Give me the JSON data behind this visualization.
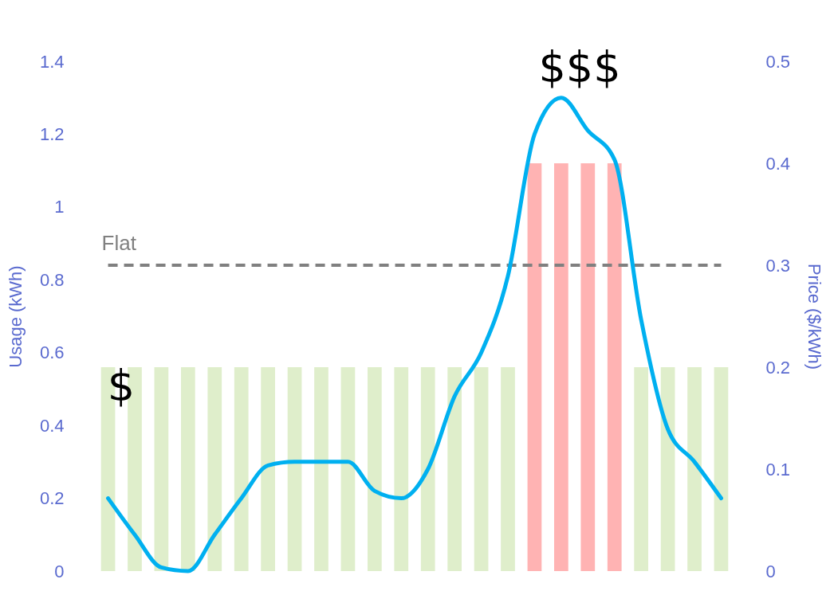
{
  "chart_data": {
    "type": "bar",
    "categories": [
      null,
      null,
      null,
      null,
      null,
      null,
      null,
      null,
      null,
      null,
      null,
      null,
      null,
      null,
      null,
      null,
      null,
      null,
      null,
      null,
      null,
      null,
      null,
      null
    ],
    "ylabel": "Usage (kWh)",
    "y2label": "Price ($/kWh)",
    "ylim": [
      0,
      1.4
    ],
    "yticks": [
      0,
      0.2,
      0.4,
      0.6,
      0.8,
      1,
      1.2,
      1.4
    ],
    "y2lim": [
      0,
      0.5
    ],
    "y2ticks": [
      0,
      0.1,
      0.2,
      0.3,
      0.4,
      0.5
    ],
    "series": [
      {
        "axis": "y2",
        "colors": [
          "#dfeecb",
          "#dfeecb",
          "#dfeecb",
          "#dfeecb",
          "#dfeecb",
          "#dfeecb",
          "#dfeecb",
          "#dfeecb",
          "#dfeecb",
          "#dfeecb",
          "#dfeecb",
          "#dfeecb",
          "#dfeecb",
          "#dfeecb",
          "#dfeecb",
          "#dfeecb",
          "#ffb3b3",
          "#ffb3b3",
          "#ffb3b3",
          "#ffb3b3",
          "#dfeecb",
          "#dfeecb",
          "#dfeecb",
          "#dfeecb"
        ],
        "values": [
          0.2,
          0.2,
          0.2,
          0.2,
          0.2,
          0.2,
          0.2,
          0.2,
          0.2,
          0.2,
          0.2,
          0.2,
          0.2,
          0.2,
          0.2,
          0.2,
          0.4,
          0.4,
          0.4,
          0.4,
          0.2,
          0.2,
          0.2,
          0.2
        ]
      },
      {
        "type": "line",
        "color": "#00b0f0",
        "values": [
          0.2,
          0.1,
          0.01,
          0,
          0.1,
          0.2,
          0.29,
          0.3,
          0.3,
          0.3,
          0.22,
          0.2,
          0.28,
          0.48,
          0.6,
          0.81,
          1.2,
          1.3,
          1.21,
          1.13,
          0.69,
          0.39,
          0.3,
          0.2
        ]
      }
    ],
    "ref_lines": [
      {
        "axis": "y2",
        "value": 0.3,
        "label": "Flat",
        "color": "#808080",
        "line_style": "dashed"
      }
    ],
    "annotations": [
      "$",
      "$$$"
    ],
    "grid": false,
    "marker": "none"
  }
}
